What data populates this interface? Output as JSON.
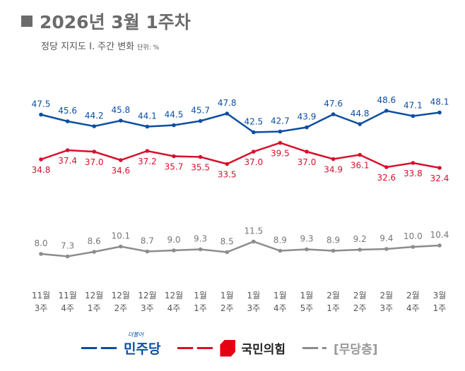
{
  "header": {
    "title": "2026년 3월 1주차",
    "subtitle": "정당 지지도 Ⅰ. 주간 변화",
    "unit": "단위: %"
  },
  "colors": {
    "dem": "#0b4ea2",
    "ppp": "#d7102b",
    "none": "#8c8c8c"
  },
  "chart_data": {
    "type": "line",
    "title": "2026년 3월 1주차 정당 지지도 주간 변화",
    "categories": [
      "11월 3주",
      "11월 4주",
      "12월 1주",
      "12월 2주",
      "12월 3주",
      "12월 4주",
      "1월 1주",
      "1월 2주",
      "1월 3주",
      "1월 4주",
      "1월 5주",
      "2월 1주",
      "2월 2주",
      "2월 3주",
      "2월 4주",
      "3월 1주"
    ],
    "series": [
      {
        "name": "민주당",
        "values": [
          47.5,
          45.6,
          44.2,
          45.8,
          44.1,
          44.5,
          45.7,
          47.8,
          42.5,
          42.7,
          43.9,
          47.6,
          44.8,
          48.6,
          47.1,
          48.1
        ]
      },
      {
        "name": "국민의힘",
        "values": [
          34.8,
          37.4,
          37.0,
          34.6,
          37.2,
          35.7,
          35.5,
          33.5,
          37.0,
          39.5,
          37.0,
          34.9,
          36.1,
          32.6,
          33.8,
          32.4
        ]
      },
      {
        "name": "[무당층]",
        "values": [
          8.0,
          7.3,
          8.6,
          10.1,
          8.7,
          9.0,
          9.3,
          8.5,
          11.5,
          8.9,
          9.3,
          8.9,
          9.2,
          9.4,
          10.0,
          10.4
        ]
      }
    ],
    "legend": "bottom",
    "grid": false
  },
  "legend": {
    "dem_logo_small": "더불어",
    "dem": "민주당",
    "ppp": "국민의힘",
    "none": "[무당층]"
  }
}
